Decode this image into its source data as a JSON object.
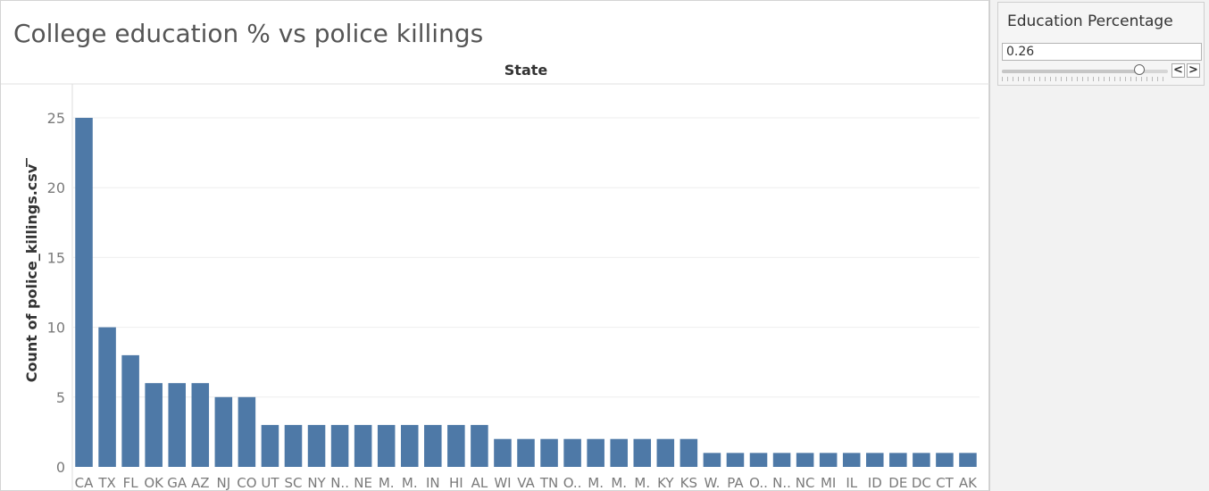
{
  "chart_title": "College education % vs police killings",
  "filter": {
    "title": "Education Percentage",
    "value": "0.26",
    "slider_fraction": 0.83,
    "prev_label": "<",
    "next_label": ">"
  },
  "colors": {
    "bar": "#4e79a7",
    "grid": "#eeeeee",
    "axis_text": "#7a7a7a"
  },
  "chart_data": {
    "type": "bar",
    "title": "",
    "column_header": "State",
    "ylabel": "Count of police_killings.csv",
    "ylabel_icon": "sort-descending-icon",
    "ylim": [
      0,
      26
    ],
    "yticks": [
      0,
      5,
      10,
      15,
      20,
      25
    ],
    "grid": true,
    "categories": [
      "CA",
      "TX",
      "FL",
      "OK",
      "GA",
      "AZ",
      "NJ",
      "CO",
      "UT",
      "SC",
      "NY",
      "N..",
      "NE",
      "M.",
      "M.",
      "IN",
      "HI",
      "AL",
      "WI",
      "VA",
      "TN",
      "O..",
      "M.",
      "M.",
      "M.",
      "KY",
      "KS",
      "W.",
      "PA",
      "O..",
      "N..",
      "NC",
      "MI",
      "IL",
      "ID",
      "DE",
      "DC",
      "CT",
      "AK"
    ],
    "values": [
      25,
      10,
      8,
      6,
      6,
      6,
      5,
      5,
      3,
      3,
      3,
      3,
      3,
      3,
      3,
      3,
      3,
      3,
      2,
      2,
      2,
      2,
      2,
      2,
      2,
      2,
      2,
      1,
      1,
      1,
      1,
      1,
      1,
      1,
      1,
      1,
      1,
      1,
      1
    ]
  }
}
